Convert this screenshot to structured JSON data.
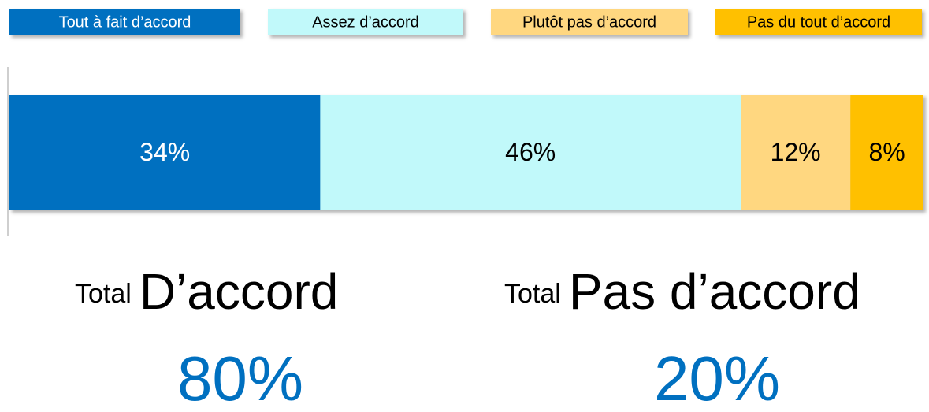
{
  "chart_data": {
    "type": "bar",
    "stacked": true,
    "orientation": "horizontal",
    "series": [
      {
        "name": "Tout à fait d’accord",
        "color": "#0070c0",
        "values": [
          34
        ],
        "value_labels": [
          "34%"
        ]
      },
      {
        "name": "Assez d’accord",
        "color": "#c1f9fa",
        "values": [
          46
        ],
        "value_labels": [
          "46%"
        ]
      },
      {
        "name": "Plutôt pas d’accord",
        "color": "#ffd780",
        "values": [
          12
        ],
        "value_labels": [
          "12%"
        ]
      },
      {
        "name": "Pas du tout d’accord",
        "color": "#ffc000",
        "values": [
          8
        ],
        "value_labels": [
          "8%"
        ]
      }
    ],
    "totals": [
      {
        "prefix": "Total",
        "name": "D’accord",
        "value_label": "80%"
      },
      {
        "prefix": "Total",
        "name": "Pas d’accord",
        "value_label": "20%"
      }
    ]
  }
}
